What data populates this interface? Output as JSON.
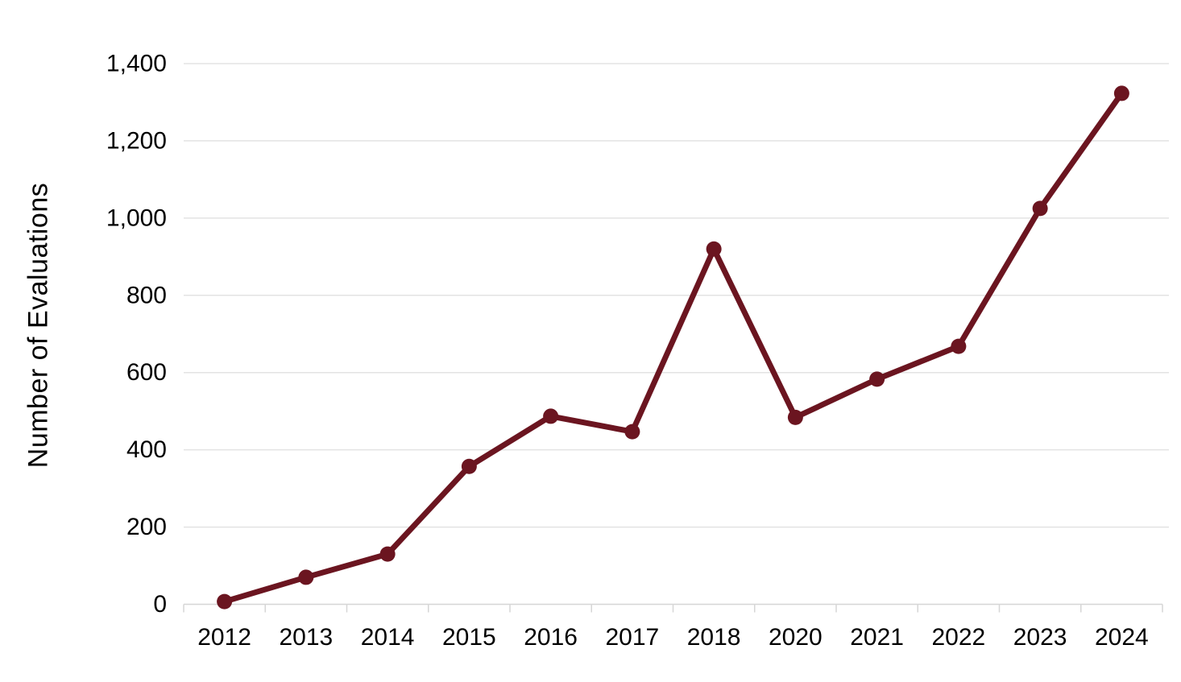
{
  "chart_data": {
    "type": "line",
    "title": "",
    "xlabel": "",
    "ylabel": "Number of Evaluations",
    "categories": [
      "2012",
      "2013",
      "2014",
      "2015",
      "2016",
      "2017",
      "2018",
      "2020",
      "2021",
      "2022",
      "2023",
      "2024"
    ],
    "values": [
      7,
      70,
      130,
      357,
      487,
      447,
      920,
      484,
      583,
      668,
      1025,
      1323
    ],
    "series": [
      {
        "name": "Number of Evaluations",
        "values": [
          7,
          70,
          130,
          357,
          487,
          447,
          920,
          484,
          583,
          668,
          1025,
          1323
        ]
      }
    ],
    "ylim": [
      0,
      1400
    ],
    "ytick_step": 200,
    "ytick_labels": [
      "0",
      "200",
      "400",
      "600",
      "800",
      "1,000",
      "1,200",
      "1,400"
    ],
    "grid": "horizontal",
    "legend": "none",
    "marker": "circle",
    "colors": {
      "line": "#6b1520",
      "marker": "#6b1520",
      "gridline": "#e3e3e3",
      "axis": "#d6d6d6",
      "text": "#000000"
    }
  }
}
